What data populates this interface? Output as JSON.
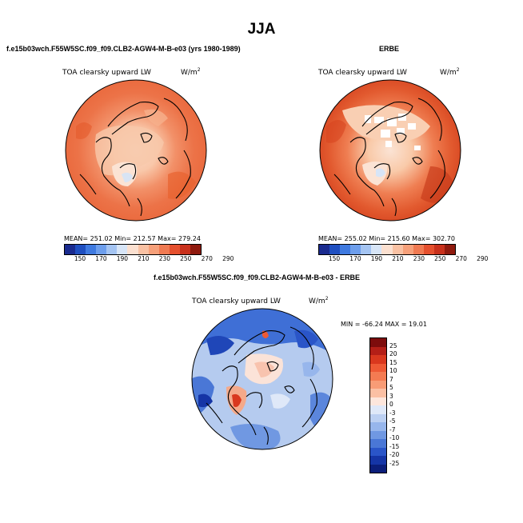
{
  "main_title": "JJA",
  "panels": {
    "model": {
      "title": "f.e15b03wch.F55W5SC.f09_f09.CLB2-AGW4-M-B-e03 (yrs 1980-1989)",
      "field": "TOA clearsky upward LW",
      "units": "W/m",
      "units_exp": "2",
      "stats": "MEAN= 251.02  Min= 212.57  Max= 279.24"
    },
    "obs": {
      "title": "ERBE",
      "field": "TOA clearsky upward LW",
      "units": "W/m",
      "units_exp": "2",
      "stats": "MEAN= 255.02  Min= 215.60  Max= 302.70"
    },
    "diff": {
      "title": "f.e15b03wch.F55W5SC.f09_f09.CLB2-AGW4-M-B-e03 - ERBE",
      "field": "TOA clearsky upward LW",
      "units": "W/m",
      "units_exp": "2",
      "stats": "MIN = -66.24 MAX =  19.01"
    }
  },
  "colorbar_abs": {
    "ticks": [
      "150",
      "170",
      "190",
      "210",
      "230",
      "250",
      "270",
      "290"
    ],
    "colors": [
      "#1a2b8f",
      "#1f4fc0",
      "#3f7ae0",
      "#6d9eec",
      "#a4c4f2",
      "#d7e5f7",
      "#fbe0d0",
      "#f9c1a3",
      "#f6a07a",
      "#f07a52",
      "#e5502e",
      "#c8311c",
      "#8f1a0e"
    ]
  },
  "colorbar_diff": {
    "ticks": [
      "25",
      "20",
      "15",
      "10",
      "7",
      "5",
      "3",
      "0",
      "-3",
      "-5",
      "-7",
      "-10",
      "-15",
      "-20",
      "-25"
    ],
    "colors": [
      "#7d0c0c",
      "#b41f17",
      "#d9381e",
      "#ee5a35",
      "#f47b52",
      "#f89c76",
      "#fbc0a4",
      "#fde6dc",
      "#dfe8f8",
      "#bcd0f2",
      "#97b6ec",
      "#7098e2",
      "#4a77d6",
      "#2a55c8",
      "#1535a6",
      "#0b1e7a"
    ]
  }
}
